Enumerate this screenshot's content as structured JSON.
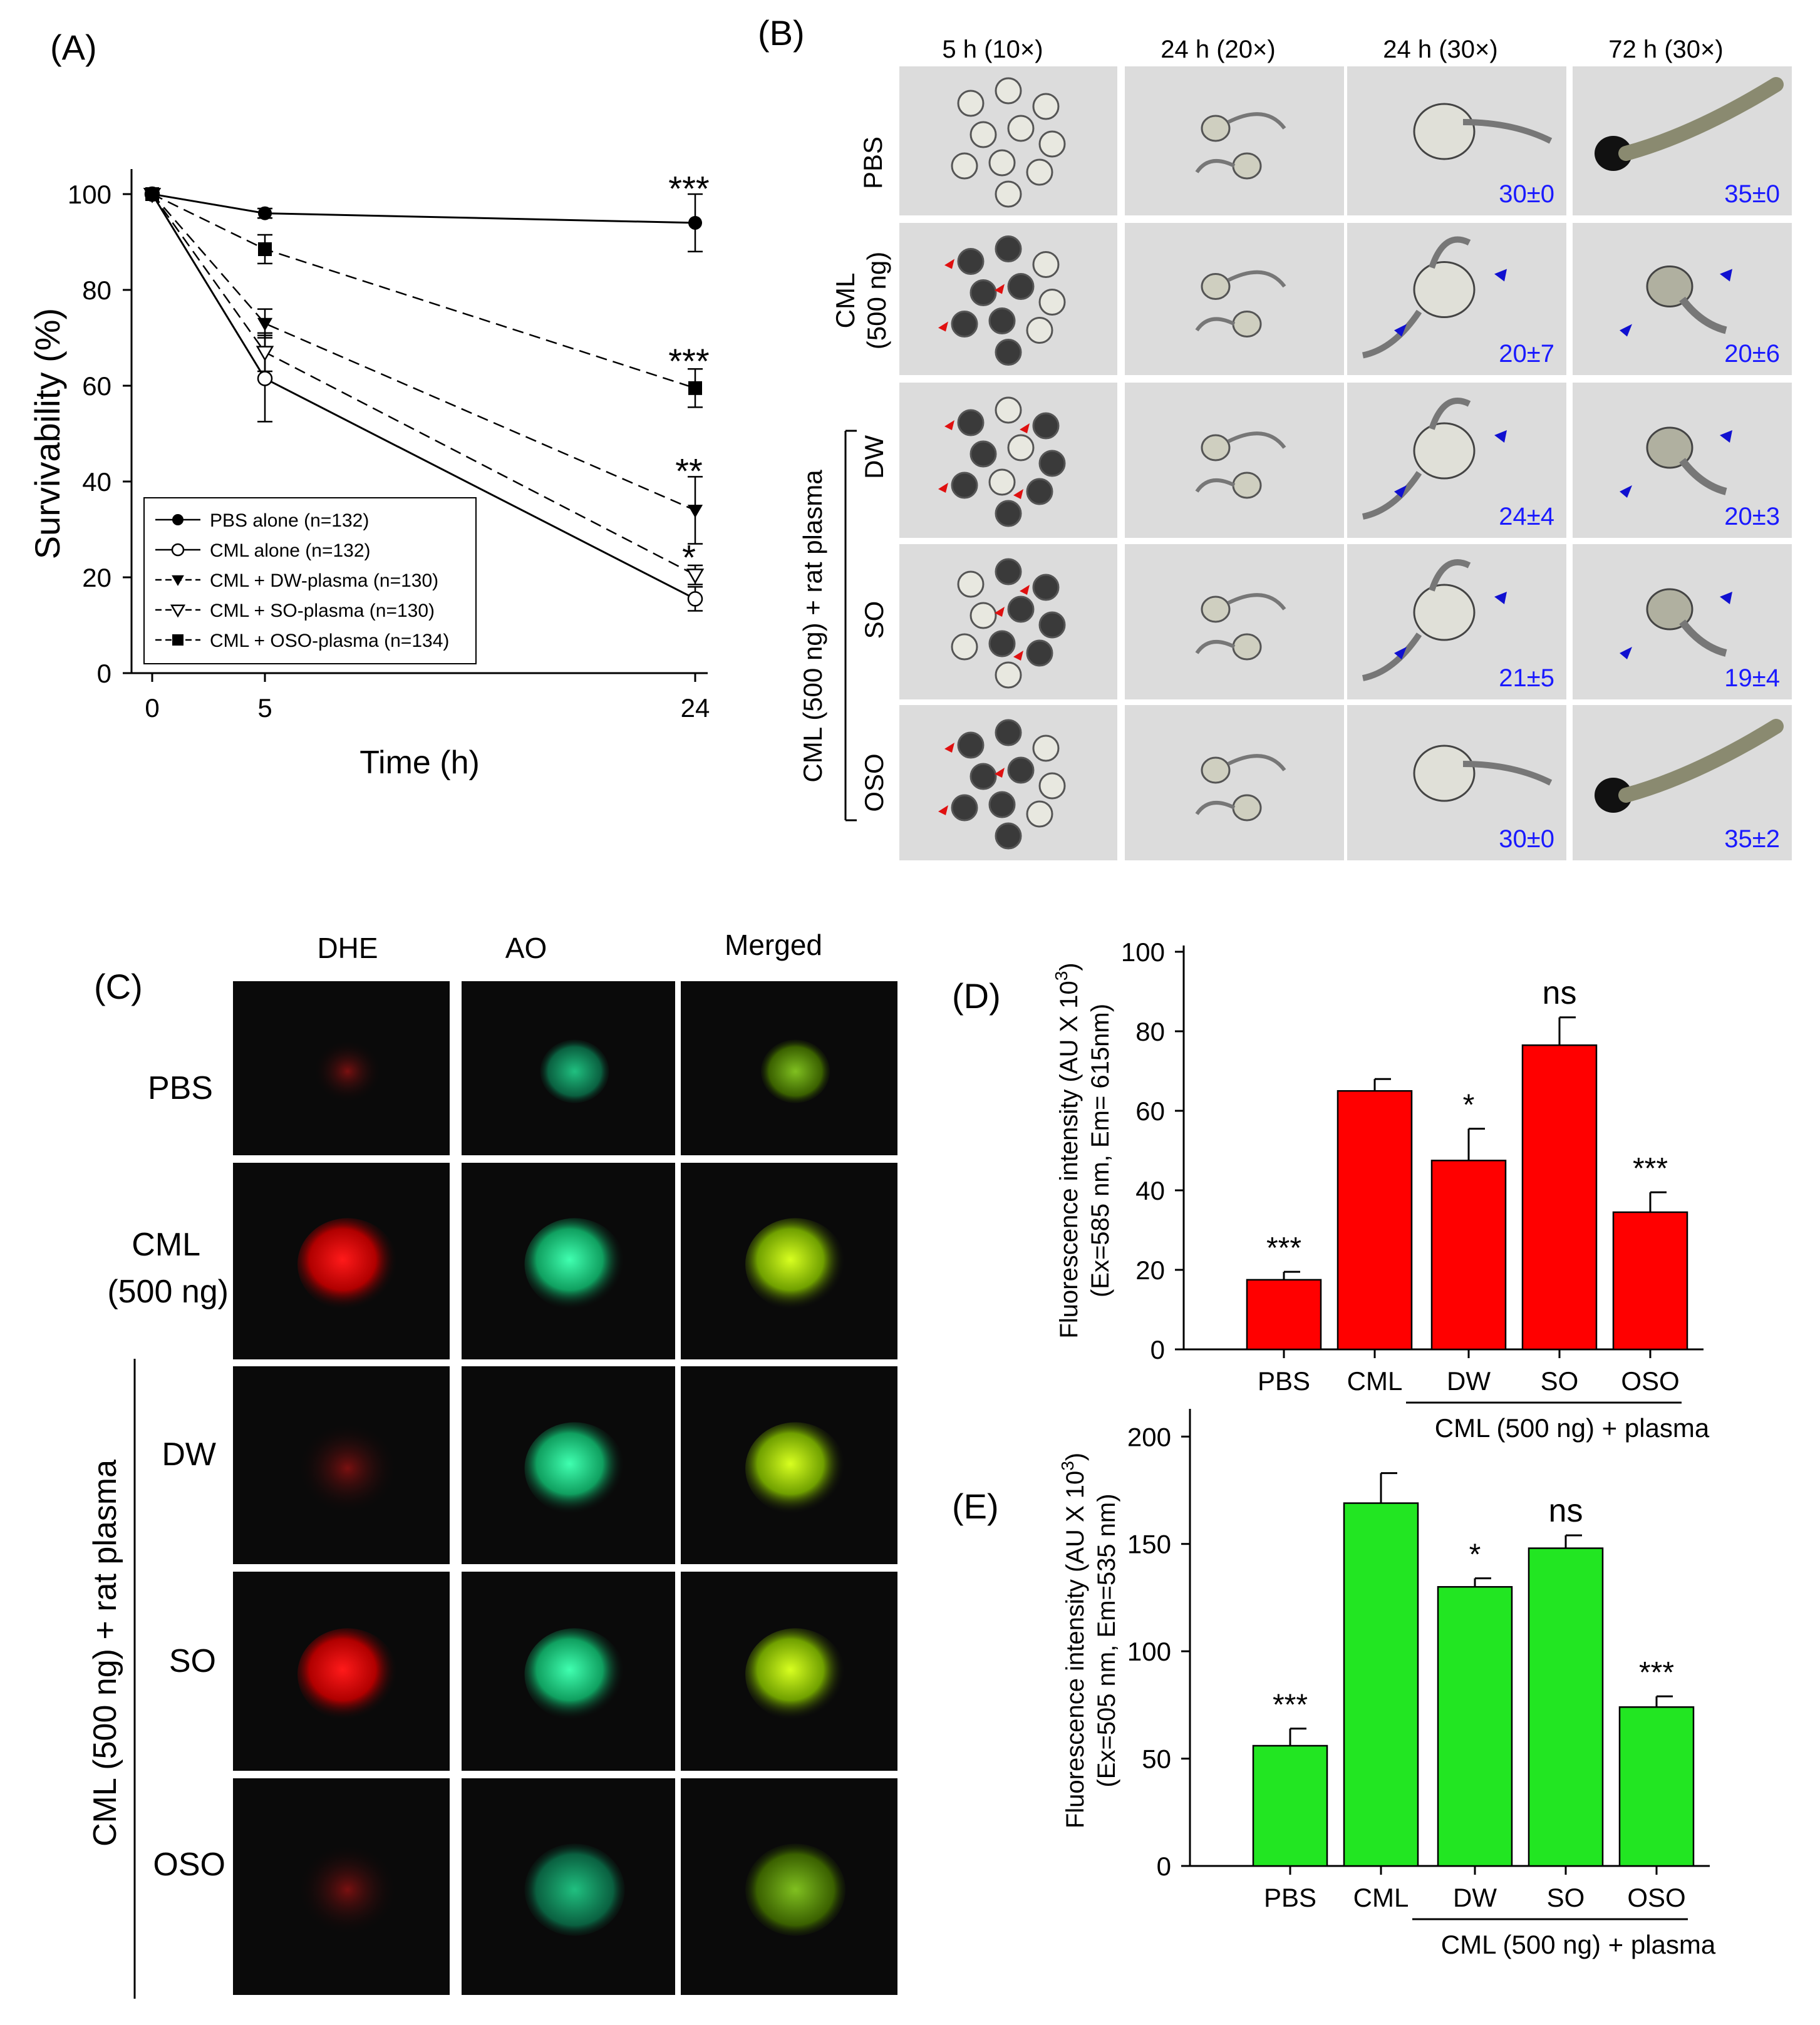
{
  "panels": {
    "A": {
      "tag": "(A)"
    },
    "B": {
      "tag": "(B)"
    },
    "C": {
      "tag": "(C)"
    },
    "D": {
      "tag": "(D)"
    },
    "E": {
      "tag": "(E)"
    }
  },
  "colors": {
    "red_bar": "#ff0000",
    "green_bar": "#22e622",
    "blue_text": "#1a1aff",
    "arrow_red": "#e01010",
    "arrow_blue": "#1010d0",
    "micro_bg": "#dcdcdc",
    "fluor_bg": "#0a0a0a"
  },
  "panel_B": {
    "col_headers": [
      "5 h (10×)",
      "24 h  (20×)",
      "24 h  (30×)",
      "72 h (30×)"
    ],
    "row_labels": [
      "PBS",
      "CML",
      "(500 ng)",
      "DW",
      "SO",
      "OSO"
    ],
    "group_label": "CML (500 ng) + rat plasma",
    "counts": [
      [
        "30±0",
        "35±0"
      ],
      [
        "20±7",
        "20±6"
      ],
      [
        "24±4",
        "20±3"
      ],
      [
        "21±5",
        "19±4"
      ],
      [
        "30±0",
        "35±2"
      ]
    ]
  },
  "panel_C": {
    "col_headers": [
      "DHE",
      "AO",
      "Merged"
    ],
    "row_labels": [
      "PBS",
      "CML",
      "(500 ng)",
      "DW",
      "SO",
      "OSO"
    ],
    "group_label": "CML (500 ng)  + rat plasma"
  },
  "chart_data": [
    {
      "panel": "A",
      "type": "line",
      "xlabel": "Time (h)",
      "ylabel": "Survivability (%)",
      "x": [
        0,
        5,
        24
      ],
      "xticks": [
        "0",
        "5",
        "24"
      ],
      "yticks": [
        "0",
        "20",
        "40",
        "60",
        "80",
        "100"
      ],
      "ylim": [
        0,
        100
      ],
      "legend_position": "bottom-left",
      "series": [
        {
          "name": "PBS alone (n=132)",
          "values": [
            100,
            96,
            94
          ],
          "err": [
            0,
            1,
            6
          ],
          "marker": "circle-filled",
          "line": "solid"
        },
        {
          "name": "CML alone (n=132)",
          "values": [
            100,
            61.5,
            15.5
          ],
          "err": [
            0,
            9,
            2.5
          ],
          "marker": "circle-open",
          "line": "solid"
        },
        {
          "name": "CML + DW-plasma (n=130)",
          "values": [
            100,
            73,
            34
          ],
          "err": [
            0,
            3,
            7
          ],
          "marker": "triangle-down-filled",
          "line": "dashed"
        },
        {
          "name": "CML + SO-plasma (n=130)",
          "values": [
            100,
            67,
            20.5
          ],
          "err": [
            0,
            4,
            2
          ],
          "marker": "triangle-down-open",
          "line": "dashed"
        },
        {
          "name": "CML + OSO-plasma (n=134)",
          "values": [
            100,
            88.5,
            59.5
          ],
          "err": [
            0,
            3,
            4
          ],
          "marker": "square-filled",
          "line": "dashed"
        }
      ],
      "annotations": [
        {
          "text": "***",
          "x": 24,
          "y": 101
        },
        {
          "text": "***",
          "x": 24,
          "y": 65
        },
        {
          "text": "**",
          "x": 24,
          "y": 42
        },
        {
          "text": "*",
          "x": 24,
          "y": 24
        }
      ]
    },
    {
      "panel": "D",
      "type": "bar",
      "ylabel_line1": "Fluorescence intensity (AU X 10",
      "ylabel_sup": "3",
      "ylabel_close": ")",
      "ylabel_line2": "(Ex=585 nm, Em= 615nm)",
      "categories": [
        "PBS",
        "CML",
        "DW",
        "SO",
        "OSO"
      ],
      "values": [
        17.5,
        65,
        47.5,
        76.5,
        34.5
      ],
      "err": [
        2,
        3,
        8,
        7,
        5
      ],
      "sig": [
        "***",
        "",
        "*",
        "ns",
        "***"
      ],
      "yticks": [
        "0",
        "20",
        "40",
        "60",
        "80",
        "100"
      ],
      "ylim": [
        0,
        100
      ],
      "group_label": "CML (500 ng) + plasma",
      "color": "#ff0000"
    },
    {
      "panel": "E",
      "type": "bar",
      "ylabel_line1": "Fluorescence intensity (AU X 10",
      "ylabel_sup": "3",
      "ylabel_close": ")",
      "ylabel_line2": "(Ex=505 nm, Em=535 nm)",
      "categories": [
        "PBS",
        "CML",
        "DW",
        "SO",
        "OSO"
      ],
      "values": [
        56,
        169,
        130,
        148,
        74
      ],
      "err": [
        8,
        14,
        4,
        6,
        5
      ],
      "sig": [
        "***",
        "",
        "*",
        "ns",
        "***"
      ],
      "yticks": [
        "0",
        "50",
        "100",
        "150",
        "200"
      ],
      "ylim": [
        0,
        210
      ],
      "group_label": "CML (500 ng) + plasma",
      "color": "#22e622"
    }
  ]
}
